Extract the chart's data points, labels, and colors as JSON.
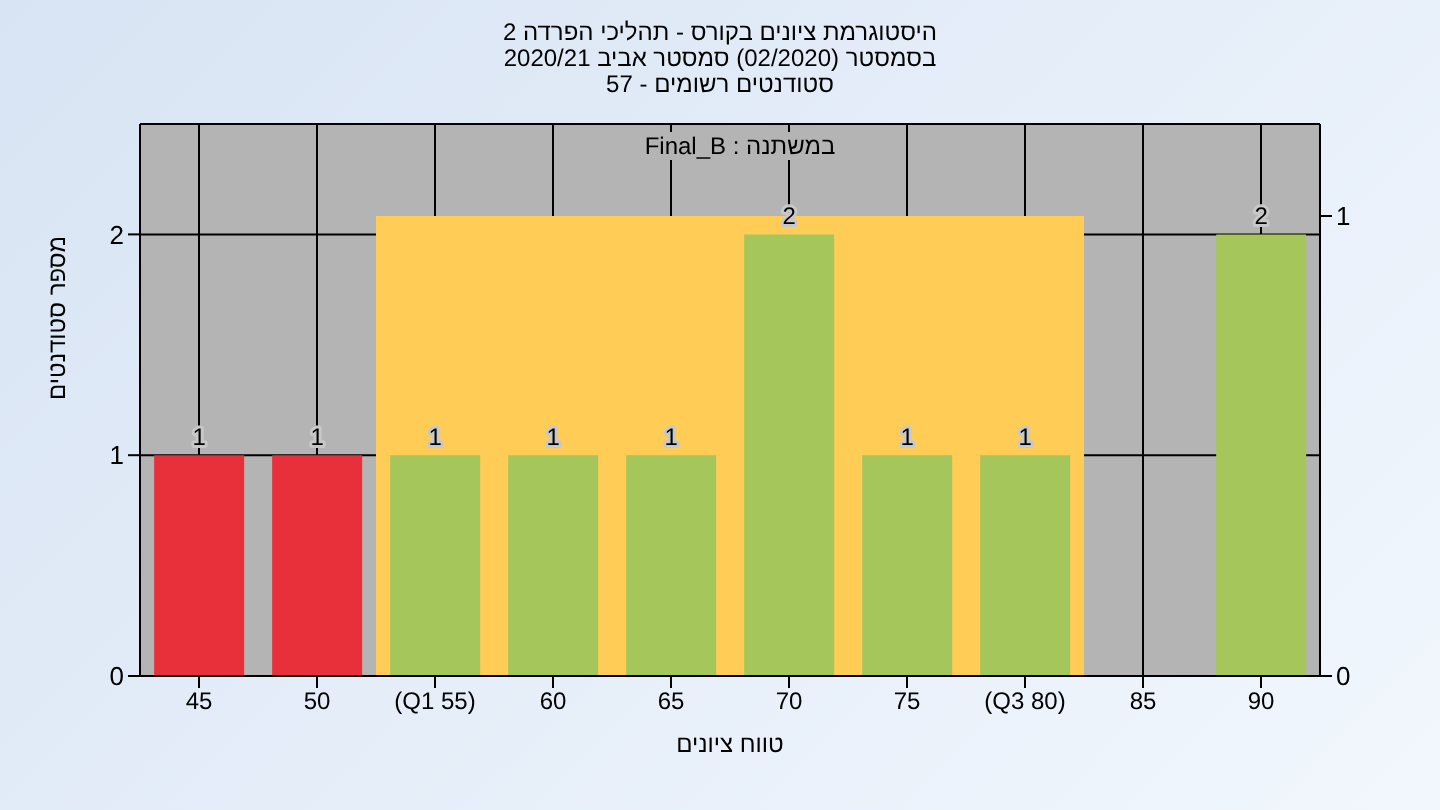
{
  "chart_data": {
    "type": "bar",
    "title": "היסטוגרמת ציונים בקורס - תהליכי הפרדה 2",
    "subtitle": "בסמסטר  (02/2020)  סמסטר אביב 2020/21\nסטודנטים רשומים - 57",
    "xlabel": "טווח ציונים",
    "ylabel": "מספר סטודנטים",
    "annotations": [
      "במשתנה : Final_B"
    ],
    "categories": [
      "45",
      "50",
      "(Q1 55)",
      "60",
      "65",
      "70",
      "75",
      "(Q3 80)",
      "85",
      "90"
    ],
    "values": [
      1,
      1,
      1,
      1,
      1,
      2,
      1,
      1,
      0,
      2
    ],
    "value_labels": [
      "1",
      "1",
      "1",
      "1",
      "1",
      "2",
      "1",
      "1",
      null,
      "2"
    ],
    "colors": [
      "#e8303a",
      "#e8303a",
      "#a4c65a",
      "#a4c65a",
      "#a4c65a",
      "#a4c65a",
      "#a4c65a",
      "#a4c65a",
      "#a4c65a",
      "#a4c65a"
    ],
    "ylim": [
      0,
      2.5
    ],
    "yticks": [
      0,
      1,
      2
    ],
    "y2lim": [
      0,
      1.2
    ],
    "y2ticks": [
      0,
      1
    ],
    "bands": [
      {
        "axis": "x",
        "from": "(Q1 55)",
        "to": "(Q3 80)",
        "color": "#ffcc55"
      }
    ],
    "grid": true
  }
}
